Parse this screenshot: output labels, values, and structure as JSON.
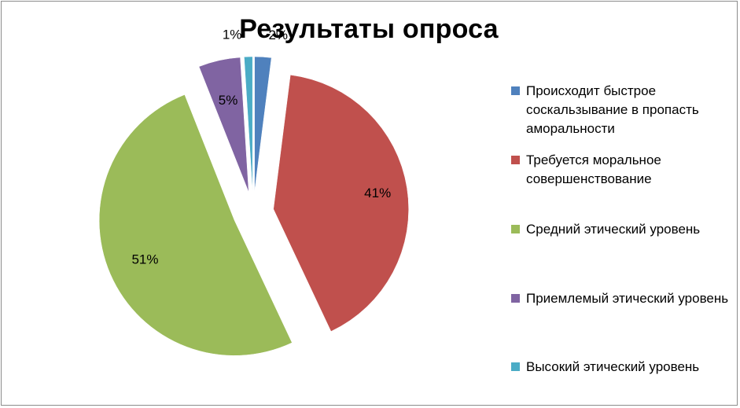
{
  "chart_data": {
    "type": "pie",
    "title": "Результаты опроса",
    "exploded": true,
    "legend_position": "right",
    "slices": [
      {
        "label": "Происходит быстрое соскальзывание в пропасть аморальности",
        "value": 2,
        "display": "2%",
        "color": "#4f81bd"
      },
      {
        "label": "Требуется моральное совершенствование",
        "value": 41,
        "display": "41%",
        "color": "#c0504d"
      },
      {
        "label": "Средний этический уровень",
        "value": 51,
        "display": "51%",
        "color": "#9bbb59"
      },
      {
        "label": "Приемлемый этический уровень",
        "value": 5,
        "display": "5%",
        "color": "#8064a2"
      },
      {
        "label": "Высокий этический уровень",
        "value": 1,
        "display": "1%",
        "color": "#4bacc6"
      }
    ]
  }
}
